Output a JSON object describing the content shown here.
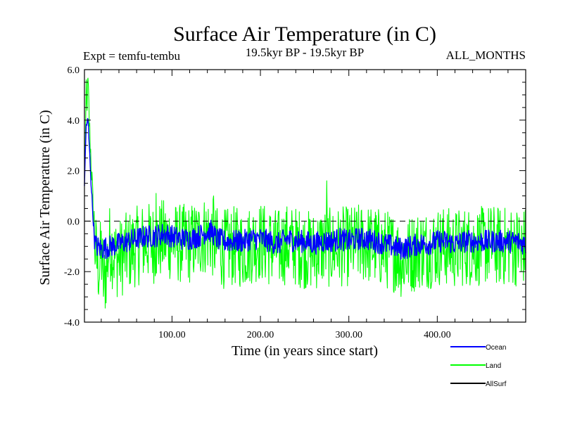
{
  "chart_data": {
    "type": "line",
    "title": "Surface Air Temperature (in C)",
    "subtitle_left": "Expt = temfu-tembu",
    "subtitle_center": "19.5kyr BP - 19.5kyr BP",
    "subtitle_right": "ALL_MONTHS",
    "xlabel": "Time (in years since start)",
    "ylabel": "Surface Air Temperature (in C)",
    "xlim": [
      1,
      500
    ],
    "ylim": [
      -4.0,
      6.0
    ],
    "x_ticks": [
      100,
      200,
      300,
      400
    ],
    "x_tick_labels": [
      "100.00",
      "200.00",
      "300.00",
      "400.00"
    ],
    "y_ticks": [
      -4,
      -2,
      0,
      2,
      4,
      6
    ],
    "y_tick_labels": [
      "-4.0",
      "-2.0",
      "0.0",
      "2.0",
      "4.0",
      "6.0"
    ],
    "zero_line": true,
    "legend_position": "bottom-right",
    "series": [
      {
        "name": "Land",
        "color": "#00ff00",
        "points": [
          [
            1,
            2.0
          ],
          [
            3,
            4.2
          ],
          [
            5,
            5.4
          ],
          [
            7,
            3.5
          ],
          [
            9,
            2.0
          ],
          [
            11,
            0.3
          ],
          [
            13,
            -1.0
          ],
          [
            15,
            -1.6
          ],
          [
            18,
            -1.9
          ],
          [
            20,
            -1.2
          ],
          [
            23,
            -2.6
          ],
          [
            26,
            -1.8
          ],
          [
            30,
            -0.8
          ],
          [
            35,
            -1.4
          ],
          [
            40,
            -1.5
          ],
          [
            50,
            -1.2
          ],
          [
            60,
            -1.0
          ],
          [
            70,
            -0.8
          ],
          [
            80,
            -0.9
          ],
          [
            90,
            -0.7
          ],
          [
            100,
            -0.8
          ],
          [
            110,
            -0.9
          ],
          [
            120,
            -0.9
          ],
          [
            130,
            -0.7
          ],
          [
            140,
            -0.5
          ],
          [
            145,
            -0.6
          ],
          [
            150,
            -1.0
          ],
          [
            160,
            -1.1
          ],
          [
            170,
            -1.0
          ],
          [
            180,
            -1.1
          ],
          [
            190,
            -0.9
          ],
          [
            200,
            -0.8
          ],
          [
            210,
            -1.0
          ],
          [
            220,
            -1.1
          ],
          [
            230,
            -0.9
          ],
          [
            240,
            -1.0
          ],
          [
            250,
            -1.1
          ],
          [
            260,
            -1.2
          ],
          [
            270,
            -1.0
          ],
          [
            275,
            -1.0
          ],
          [
            280,
            -1.1
          ],
          [
            290,
            -1.0
          ],
          [
            300,
            -1.0
          ],
          [
            310,
            -0.9
          ],
          [
            320,
            -0.9
          ],
          [
            330,
            -1.0
          ],
          [
            340,
            -1.1
          ],
          [
            350,
            -1.2
          ],
          [
            360,
            -1.5
          ],
          [
            365,
            -1.4
          ],
          [
            370,
            -1.3
          ],
          [
            380,
            -1.1
          ],
          [
            390,
            -1.1
          ],
          [
            400,
            -1.0
          ],
          [
            410,
            -1.0
          ],
          [
            420,
            -1.1
          ],
          [
            430,
            -1.0
          ],
          [
            440,
            -1.0
          ],
          [
            450,
            -1.0
          ],
          [
            460,
            -0.9
          ],
          [
            470,
            -1.0
          ],
          [
            480,
            -1.0
          ],
          [
            490,
            -1.0
          ],
          [
            500,
            -1.0
          ]
        ],
        "spread": 1.6,
        "spikes": [
          [
            3,
            5.6
          ],
          [
            23,
            -2.6
          ],
          [
            82,
            1.1
          ],
          [
            147,
            1.0
          ],
          [
            275,
            1.6
          ],
          [
            362,
            -2.4
          ],
          [
            388,
            -2.2
          ],
          [
            495,
            -2.0
          ]
        ]
      },
      {
        "name": "Ocean",
        "color": "#0000ff",
        "points": [
          [
            1,
            1.5
          ],
          [
            3,
            3.8
          ],
          [
            5,
            4.0
          ],
          [
            7,
            2.6
          ],
          [
            9,
            1.2
          ],
          [
            11,
            0.0
          ],
          [
            13,
            -0.9
          ],
          [
            15,
            -1.0
          ],
          [
            20,
            -1.1
          ],
          [
            30,
            -1.0
          ],
          [
            40,
            -0.9
          ],
          [
            50,
            -0.8
          ],
          [
            60,
            -0.7
          ],
          [
            70,
            -0.6
          ],
          [
            80,
            -0.6
          ],
          [
            90,
            -0.5
          ],
          [
            100,
            -0.6
          ],
          [
            110,
            -0.7
          ],
          [
            120,
            -0.7
          ],
          [
            130,
            -0.6
          ],
          [
            140,
            -0.4
          ],
          [
            145,
            -0.4
          ],
          [
            150,
            -0.7
          ],
          [
            160,
            -0.8
          ],
          [
            170,
            -0.8
          ],
          [
            180,
            -0.8
          ],
          [
            190,
            -0.7
          ],
          [
            200,
            -0.7
          ],
          [
            210,
            -0.8
          ],
          [
            220,
            -0.9
          ],
          [
            230,
            -0.7
          ],
          [
            240,
            -0.8
          ],
          [
            250,
            -0.8
          ],
          [
            260,
            -0.9
          ],
          [
            270,
            -0.8
          ],
          [
            280,
            -0.8
          ],
          [
            290,
            -0.7
          ],
          [
            300,
            -0.8
          ],
          [
            310,
            -0.7
          ],
          [
            320,
            -0.7
          ],
          [
            330,
            -0.8
          ],
          [
            340,
            -0.9
          ],
          [
            350,
            -1.0
          ],
          [
            360,
            -1.1
          ],
          [
            370,
            -1.0
          ],
          [
            380,
            -0.9
          ],
          [
            390,
            -0.9
          ],
          [
            400,
            -0.8
          ],
          [
            410,
            -0.8
          ],
          [
            420,
            -0.9
          ],
          [
            430,
            -0.8
          ],
          [
            440,
            -0.8
          ],
          [
            450,
            -0.8
          ],
          [
            460,
            -0.8
          ],
          [
            470,
            -0.8
          ],
          [
            480,
            -0.8
          ],
          [
            490,
            -0.8
          ],
          [
            500,
            -0.9
          ]
        ],
        "spread": 0.45,
        "spikes": []
      },
      {
        "name": "AllSurf",
        "color": "#000000",
        "points": [],
        "spread": 0,
        "spikes": []
      }
    ]
  }
}
